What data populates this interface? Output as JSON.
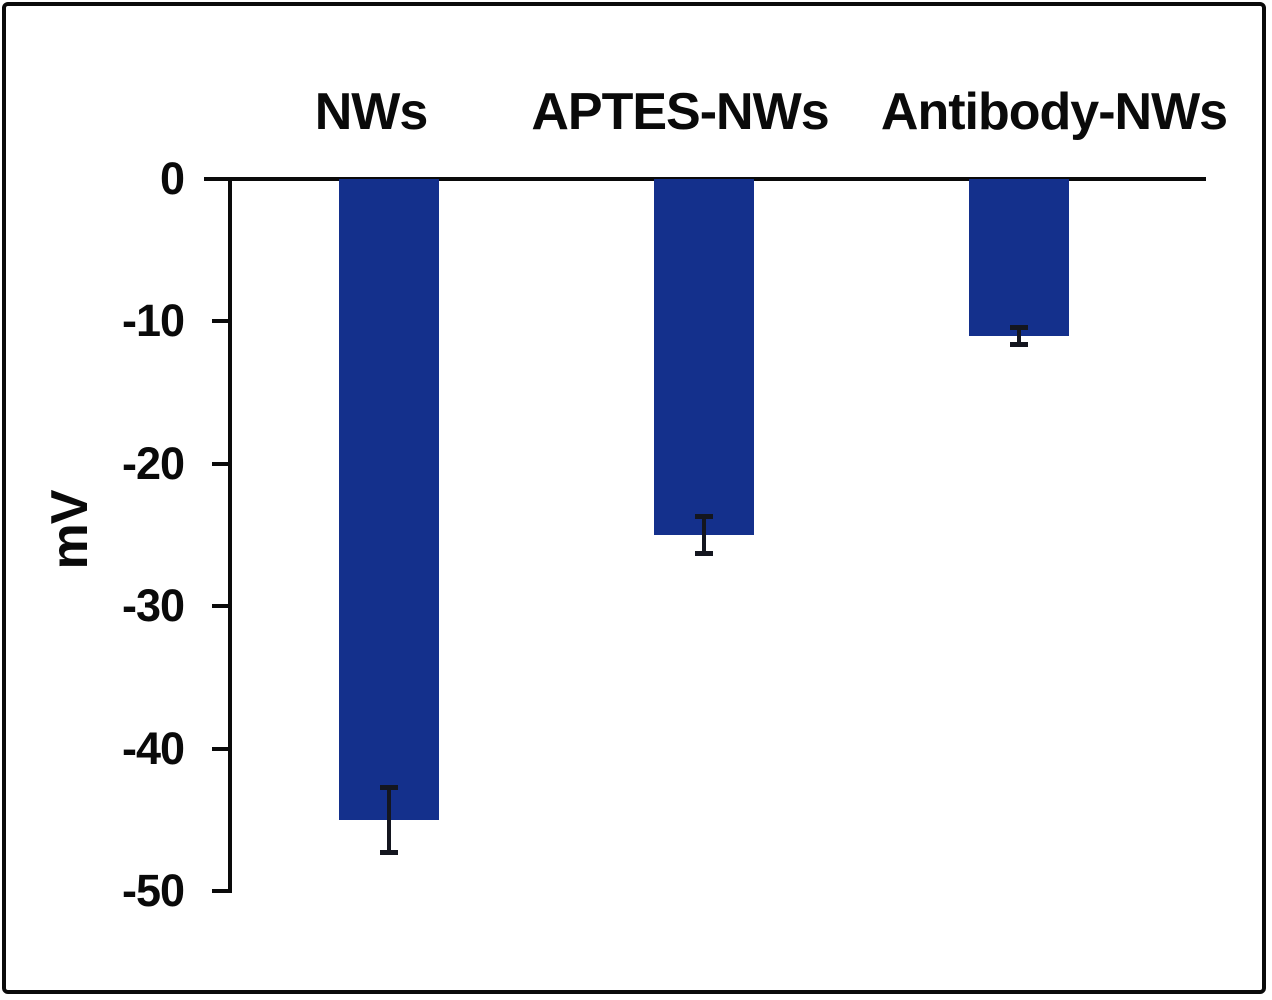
{
  "chart_data": {
    "type": "bar",
    "categories": [
      "NWs",
      "APTES-NWs",
      "Antibody-NWs"
    ],
    "values": [
      -45,
      -25,
      -11
    ],
    "errors": [
      2.3,
      1.3,
      0.6
    ],
    "title": "",
    "xlabel": "",
    "ylabel": "mV",
    "yticks": [
      0,
      -10,
      -20,
      -30,
      -40,
      -50
    ],
    "ylim": [
      0,
      -50
    ],
    "bar_color": "#14308C",
    "axis_color": "#0a0a0a",
    "grid": false,
    "legend": false,
    "orientation": "vertical-negative"
  }
}
